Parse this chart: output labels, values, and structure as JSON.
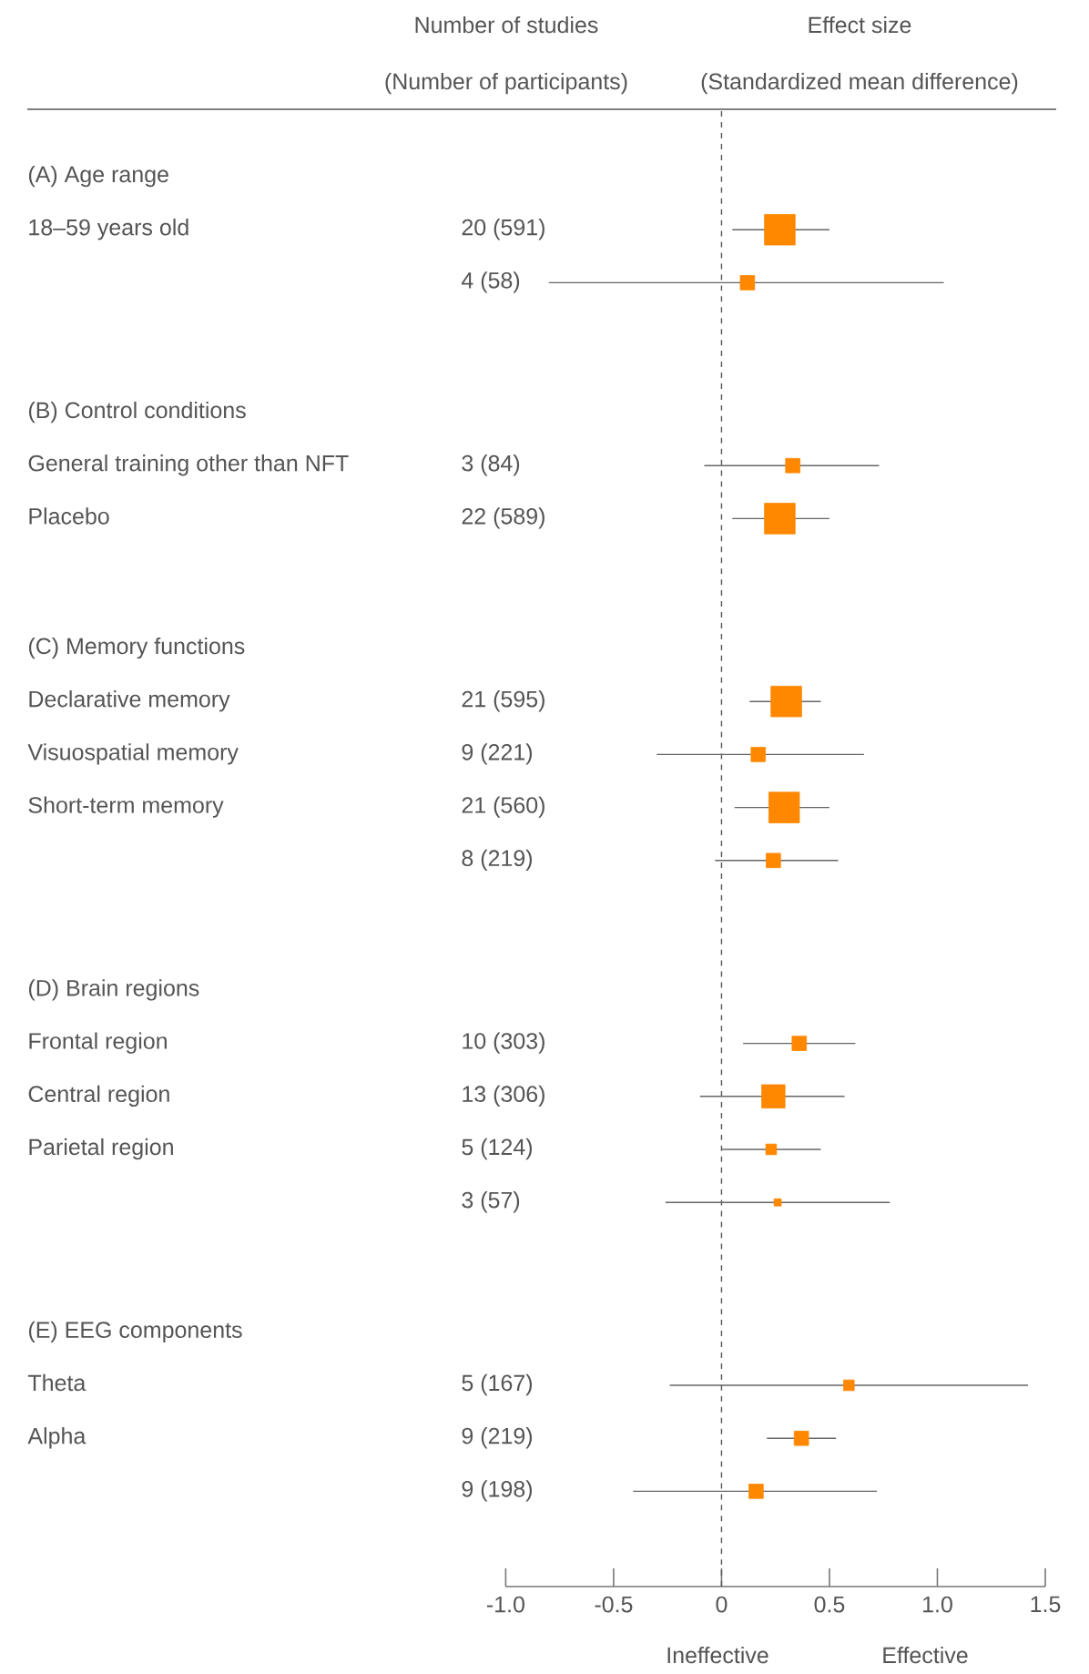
{
  "chart_data": {
    "type": "bubble",
    "orientation": "horizontal",
    "marker": "square",
    "color": "#ff8800",
    "categories": [
      "(A) Age range",
      "18–59 years old",
      null,
      null,
      "(B) Control conditions",
      "General training other than NFT",
      "Placebo",
      null,
      "(C) Memory functions",
      "Declarative memory",
      "Visuospatial memory",
      "Short-term memory",
      null,
      null,
      "(D) Brain regions",
      "Frontal region",
      "Central region",
      "Parietal region",
      null,
      null,
      "(E) EEG components",
      "Theta",
      "Alpha",
      null
    ],
    "values": [
      null,
      0.27,
      0.12,
      null,
      null,
      0.33,
      0.27,
      null,
      null,
      0.3,
      0.17,
      0.29,
      0.24,
      null,
      null,
      0.36,
      0.24,
      0.23,
      0.26,
      null,
      null,
      0.59,
      0.37,
      0.16
    ],
    "errors": [
      null,
      [
        0.05,
        0.5
      ],
      [
        -0.8,
        1.03
      ],
      null,
      null,
      [
        -0.08,
        0.73
      ],
      [
        0.05,
        0.5
      ],
      null,
      null,
      [
        0.13,
        0.46
      ],
      [
        -0.3,
        0.66
      ],
      [
        0.06,
        0.5
      ],
      [
        -0.03,
        0.54
      ],
      null,
      null,
      [
        0.1,
        0.62
      ],
      [
        -0.1,
        0.57
      ],
      [
        0.0,
        0.46
      ],
      [
        -0.26,
        0.78
      ],
      null,
      null,
      [
        -0.24,
        1.42
      ],
      [
        0.21,
        0.53
      ],
      [
        -0.41,
        0.72
      ]
    ],
    "sizes": [
      null,
      1,
      0.22,
      null,
      null,
      0.22,
      1,
      null,
      null,
      1,
      0.22,
      1,
      0.22,
      null,
      null,
      0.22,
      0.58,
      0.12,
      0.055,
      null,
      null,
      0.12,
      0.22,
      0.22
    ],
    "xlim": [
      -1,
      1.5
    ],
    "xticks": [
      {
        "value": -1,
        "label": "-1.0"
      },
      -0.5,
      0,
      0.5,
      {
        "value": 1,
        "label": "1.0"
      },
      1.5
    ],
    "ref_lines": [
      {
        "axis": "x",
        "value": 0,
        "line_style": "dashed",
        "color": "#555555"
      }
    ],
    "annotations": [
      "Number of studies",
      "(Number of participants)",
      "Effect size",
      "(Standardized mean difference)",
      "Ineffective",
      "Effective",
      "20 (591)",
      "4 (58)",
      "3 (84)",
      "22 (589)",
      "21 (595)",
      "9 (221)",
      "21 (560)",
      "8 (219)",
      "10 (303)",
      "13 (306)",
      "5 (124)",
      "3 (57)",
      "5 (167)",
      "9 (219)",
      "9 (198)"
    ]
  }
}
